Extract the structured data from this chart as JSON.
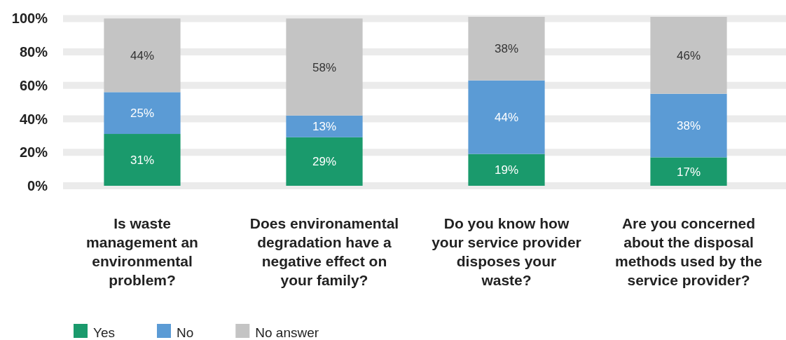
{
  "chart_data": {
    "type": "bar",
    "stacked": true,
    "categories": [
      "Is waste management an environmental problem?",
      "Does environamental degradation have a negative effect on your family?",
      "Do you know how your service provider disposes your waste?",
      "Are you concerned about the disposal methods used by the service provider?"
    ],
    "series": [
      {
        "name": "Yes",
        "color": "#1a9a6c",
        "values": [
          31,
          29,
          19,
          17
        ],
        "value_labels": [
          "31%",
          "29%",
          "19%",
          "17%"
        ]
      },
      {
        "name": "No",
        "color": "#5b9bd5",
        "values": [
          25,
          13,
          44,
          38
        ],
        "value_labels": [
          "25%",
          "13%",
          "44%",
          "38%"
        ]
      },
      {
        "name": "No answer",
        "color": "#c4c4c4",
        "values": [
          44,
          58,
          38,
          46
        ],
        "value_labels": [
          "44%",
          "58%",
          "38%",
          "46%"
        ]
      }
    ],
    "ylim": [
      0,
      101
    ],
    "yticks": [
      {
        "value": 0,
        "label": "0%"
      },
      {
        "value": 20,
        "label": "20%"
      },
      {
        "value": 40,
        "label": "40%"
      },
      {
        "value": 60,
        "label": "60%"
      },
      {
        "value": 80,
        "label": "80%"
      },
      {
        "value": 100,
        "label": "100%"
      }
    ],
    "grid": "y",
    "legend": "bottom left"
  }
}
